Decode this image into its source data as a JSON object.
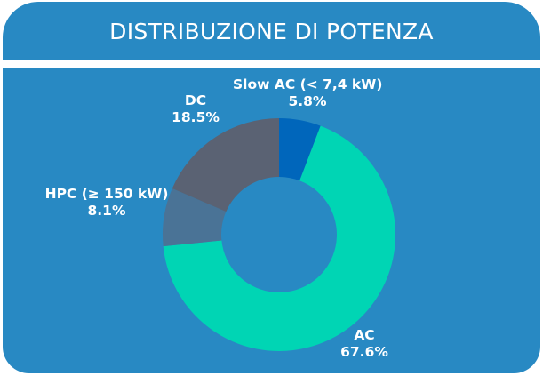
{
  "header": {
    "title": "DISTRIBUZIONE DI POTENZA"
  },
  "colors": {
    "background": "#2889c3",
    "slow_ac": "#0066bb",
    "ac": "#00d5b4",
    "hpc": "#4a7396",
    "dc": "#5a6273"
  },
  "labels": {
    "slow_ac": {
      "name": "Slow AC (< 7,4 kW)",
      "value": "5.8%"
    },
    "ac": {
      "name": "AC",
      "value": "67.6%"
    },
    "hpc": {
      "name": "HPC (≥ 150 kW)",
      "value": "8.1%"
    },
    "dc": {
      "name": "DC",
      "value": "18.5%"
    }
  },
  "chart_data": {
    "type": "pie",
    "subtype": "donut",
    "title": "DISTRIBUZIONE DI POTENZA",
    "categories": [
      "Slow AC (< 7,4 kW)",
      "AC",
      "HPC (≥ 150 kW)",
      "DC"
    ],
    "values": [
      5.8,
      67.6,
      8.1,
      18.5
    ],
    "unit": "%",
    "colors": [
      "#0066bb",
      "#00d5b4",
      "#4a7396",
      "#5a6273"
    ],
    "start_angle": "12 o'clock, clockwise",
    "legend": "none (data labels outside slices)"
  }
}
